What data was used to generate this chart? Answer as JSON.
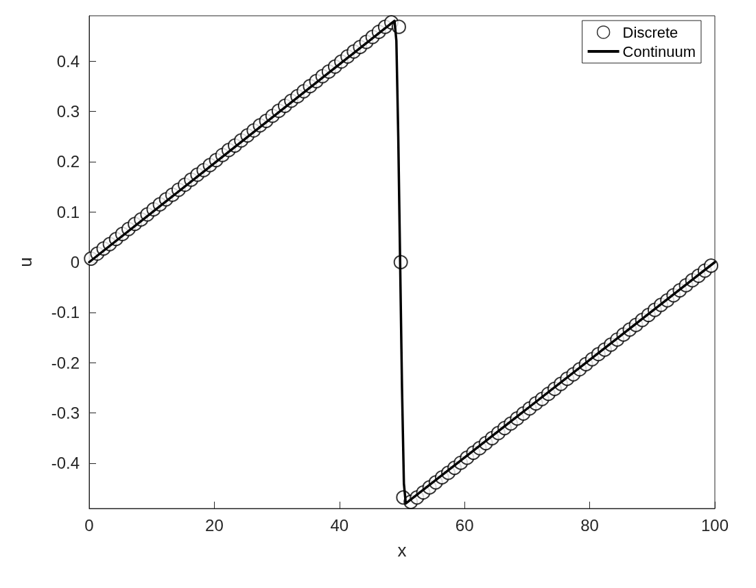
{
  "chart_data": {
    "type": "scatter",
    "xlabel": "x",
    "ylabel": "u",
    "xlim": [
      0,
      100
    ],
    "xticks": [
      0,
      20,
      40,
      60,
      80,
      100
    ],
    "ylim": [
      -0.49,
      0.49
    ],
    "yticks": [
      -0.4,
      -0.3,
      -0.2,
      -0.1,
      0,
      0.1,
      0.2,
      0.3,
      0.4
    ],
    "grid": false,
    "legend": "top right",
    "series": [
      {
        "name": "Discrete",
        "marker": "circle",
        "color": "#000000",
        "x": [
          0.3,
          1.3,
          2.3,
          3.3,
          4.3,
          5.3,
          6.3,
          7.3,
          8.3,
          9.3,
          10.3,
          11.3,
          12.3,
          13.3,
          14.3,
          15.3,
          16.3,
          17.3,
          18.3,
          19.3,
          20.3,
          21.3,
          22.3,
          23.3,
          24.3,
          25.3,
          26.3,
          27.3,
          28.3,
          29.3,
          30.3,
          31.3,
          32.3,
          33.3,
          34.3,
          35.3,
          36.3,
          37.3,
          38.3,
          39.3,
          40.3,
          41.3,
          42.3,
          43.3,
          44.3,
          45.3,
          46.3,
          47.3,
          48.3,
          49.5,
          49.8,
          50.2,
          51.4,
          52.4,
          53.4,
          54.4,
          55.4,
          56.4,
          57.4,
          58.4,
          59.4,
          60.4,
          61.4,
          62.4,
          63.4,
          64.4,
          65.4,
          66.4,
          67.4,
          68.4,
          69.4,
          70.4,
          71.4,
          72.4,
          73.4,
          74.4,
          75.4,
          76.4,
          77.4,
          78.4,
          79.4,
          80.4,
          81.4,
          82.4,
          83.4,
          84.4,
          85.4,
          86.4,
          87.4,
          88.4,
          89.4,
          90.4,
          91.4,
          92.4,
          93.4,
          94.4,
          95.4,
          96.4,
          97.4,
          98.4,
          99.4
        ],
        "values": [
          0.007,
          0.017,
          0.027,
          0.036,
          0.046,
          0.056,
          0.066,
          0.076,
          0.085,
          0.095,
          0.105,
          0.115,
          0.125,
          0.134,
          0.144,
          0.154,
          0.164,
          0.174,
          0.183,
          0.193,
          0.203,
          0.213,
          0.223,
          0.232,
          0.242,
          0.252,
          0.262,
          0.272,
          0.281,
          0.291,
          0.301,
          0.311,
          0.321,
          0.33,
          0.34,
          0.35,
          0.36,
          0.37,
          0.379,
          0.389,
          0.399,
          0.409,
          0.419,
          0.428,
          0.438,
          0.448,
          0.458,
          0.468,
          0.477,
          0.468,
          0,
          -0.468,
          -0.477,
          -0.468,
          -0.458,
          -0.448,
          -0.438,
          -0.428,
          -0.419,
          -0.409,
          -0.399,
          -0.389,
          -0.379,
          -0.37,
          -0.36,
          -0.35,
          -0.34,
          -0.33,
          -0.321,
          -0.311,
          -0.301,
          -0.291,
          -0.281,
          -0.272,
          -0.262,
          -0.252,
          -0.242,
          -0.232,
          -0.223,
          -0.213,
          -0.203,
          -0.193,
          -0.183,
          -0.174,
          -0.164,
          -0.154,
          -0.144,
          -0.134,
          -0.125,
          -0.115,
          -0.105,
          -0.095,
          -0.085,
          -0.076,
          -0.066,
          -0.056,
          -0.046,
          -0.036,
          -0.027,
          -0.017,
          -0.007
        ]
      },
      {
        "name": "Continuum",
        "type": "line",
        "marker": "none",
        "line_style": "solid",
        "color": "#000000",
        "x": [
          0,
          48.8,
          49.1,
          49.4,
          49.7,
          50.0,
          50.3,
          50.6,
          100
        ],
        "values": [
          0,
          0.48,
          0.44,
          0.25,
          0,
          -0.25,
          -0.44,
          -0.48,
          0
        ]
      }
    ]
  }
}
